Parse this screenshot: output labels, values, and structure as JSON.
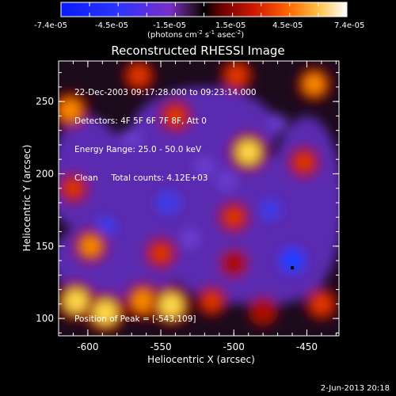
{
  "colorbar": {
    "tick_labels": [
      "-7.4e-05",
      "-4.5e-05",
      "-1.5e-05",
      "1.5e-05",
      "4.5e-05",
      "7.4e-05"
    ],
    "units_prefix": "(photons cm",
    "units_sup1": "-2",
    "units_mid": " s",
    "units_sup2": "-1",
    "units_mid2": " asec",
    "units_sup3": "-2",
    "units_suffix": ")"
  },
  "plot": {
    "title": "Reconstructed RHESSI Image",
    "xlabel": "Heliocentric X (arcsec)",
    "ylabel": "Heliocentric Y (arcsec)",
    "info_lines": [
      "22-Dec-2003 09:17:28.000 to 09:23:14.000",
      "Detectors: 4F 5F 6F 7F 8F, Att 0",
      "Energy Range: 25.0 - 50.0 keV",
      "Clean     Total counts: 4.12E+03"
    ],
    "peak_text": "Position of Peak = [-543,109]"
  },
  "footer": {
    "date": "2-Jun-2013 20:18"
  },
  "chart_data": {
    "type": "heatmap",
    "title": "Reconstructed RHESSI Image",
    "xlabel": "Heliocentric X (arcsec)",
    "ylabel": "Heliocentric Y (arcsec)",
    "xlim": [
      -620,
      -428
    ],
    "ylim": [
      88,
      278
    ],
    "x_ticks": [
      -600,
      -550,
      -500,
      -450
    ],
    "y_ticks": [
      100,
      150,
      200,
      250
    ],
    "colorbar_range": [
      -7.4e-05,
      7.4e-05
    ],
    "peak_position": [
      -543,
      109
    ],
    "hot_spots": [
      {
        "x": -612,
        "y": 244,
        "level": 0.8
      },
      {
        "x": -565,
        "y": 268,
        "level": 0.55
      },
      {
        "x": -540,
        "y": 240,
        "level": 0.6
      },
      {
        "x": -498,
        "y": 268,
        "level": 0.6
      },
      {
        "x": -490,
        "y": 215,
        "level": 0.95
      },
      {
        "x": -445,
        "y": 262,
        "level": 0.7
      },
      {
        "x": -598,
        "y": 150,
        "level": 0.7
      },
      {
        "x": -550,
        "y": 145,
        "level": 0.55
      },
      {
        "x": -608,
        "y": 112,
        "level": 0.95
      },
      {
        "x": -588,
        "y": 104,
        "level": 1.0
      },
      {
        "x": -562,
        "y": 112,
        "level": 0.85
      },
      {
        "x": -543,
        "y": 109,
        "level": 1.0
      },
      {
        "x": -515,
        "y": 112,
        "level": 0.5
      },
      {
        "x": -480,
        "y": 105,
        "level": 0.45
      },
      {
        "x": -500,
        "y": 138,
        "level": 0.4
      },
      {
        "x": -440,
        "y": 110,
        "level": 0.6
      },
      {
        "x": -452,
        "y": 208,
        "level": 0.55
      },
      {
        "x": -500,
        "y": 170,
        "level": 0.55
      },
      {
        "x": -610,
        "y": 190,
        "level": 0.5
      }
    ],
    "cold_spots": [
      {
        "x": -545,
        "y": 180,
        "level": -0.75
      },
      {
        "x": -588,
        "y": 163,
        "level": -0.55
      },
      {
        "x": -460,
        "y": 140,
        "level": -0.9
      },
      {
        "x": -505,
        "y": 195,
        "level": -0.45
      },
      {
        "x": -520,
        "y": 205,
        "level": -0.45
      },
      {
        "x": -570,
        "y": 225,
        "level": -0.4
      },
      {
        "x": -475,
        "y": 175,
        "level": -0.55
      },
      {
        "x": -530,
        "y": 155,
        "level": -0.45
      },
      {
        "x": -470,
        "y": 235,
        "level": -0.35
      }
    ],
    "marker": {
      "x": -460,
      "y": 135
    }
  }
}
